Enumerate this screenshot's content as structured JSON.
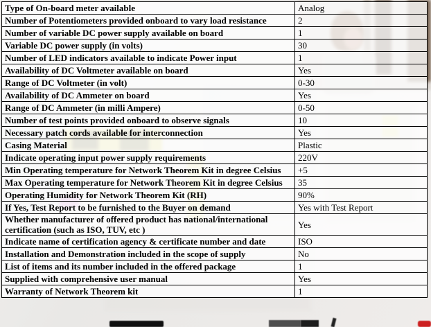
{
  "document": {
    "kind": "specification-table",
    "subject": "Network Theorem Kit"
  },
  "table": {
    "rows": [
      {
        "label": "Type of On-board meter available",
        "value": "Analog"
      },
      {
        "label": "Number of Potentiometers provided onboard to vary load resistance",
        "value": "2"
      },
      {
        "label": "Number of variable DC power supply available on board",
        "value": "1"
      },
      {
        "label": "Variable DC power supply (in volts)",
        "value": "30"
      },
      {
        "label": "Number of LED indicators available to indicate Power input",
        "value": "1"
      },
      {
        "label": "Availability of DC Voltmeter available on board",
        "value": "Yes"
      },
      {
        "label": "Range of DC Voltmeter (in volt)",
        "value": "0-30"
      },
      {
        "label": "Availability of DC Ammeter on board",
        "value": "Yes"
      },
      {
        "label": "Range of DC Ammeter (in milli Ampere)",
        "value": "0-50"
      },
      {
        "label": "Number of test points provided onboard to observe signals",
        "value": "10"
      },
      {
        "label": "Necessary patch cords available for interconnection",
        "value": "Yes"
      },
      {
        "label": "Casing Material",
        "value": "Plastic"
      },
      {
        "label": "Indicate operating input power supply requirements",
        "value": "220V"
      },
      {
        "label": "Min Operating temperature for Network Theorem Kit in degree Celsius",
        "value": "+5"
      },
      {
        "label": "Max Operating temperature for Network Theorem Kit in degree Celsius",
        "value": "35"
      },
      {
        "label": "Operating Humidity for Network Theorem Kit (RH)",
        "value": "90%"
      },
      {
        "label": "If Yes, Test Report to be furnished to the Buyer on demand",
        "value": "Yes with Test Report"
      },
      {
        "label": "Whether manufacturer of offered product has national/international certification (such as ISO, TUV, etc )",
        "value": "Yes"
      },
      {
        "label": "Indicate name of certification agency & certificate number and date",
        "value": "ISO"
      },
      {
        "label": "Installation and Demonstration included in the scope of supply",
        "value": "No"
      },
      {
        "label": "List of items and its number included in the offered package",
        "value": "1"
      },
      {
        "label": "Supplied with comprehensive user manual",
        "value": "Yes"
      },
      {
        "label": "Warranty of Network Theorem kit",
        "value": "1"
      }
    ]
  },
  "colors": {
    "table_border": "#000000",
    "text": "#000000",
    "table_overlay": "#ffffff",
    "photo_wood_brown": "#5a4636",
    "photo_skin": "#c89d8b",
    "photo_yellow_equipment": "#ded773",
    "photo_magenta": "#c879c8",
    "photo_red_item": "#cc2020"
  }
}
